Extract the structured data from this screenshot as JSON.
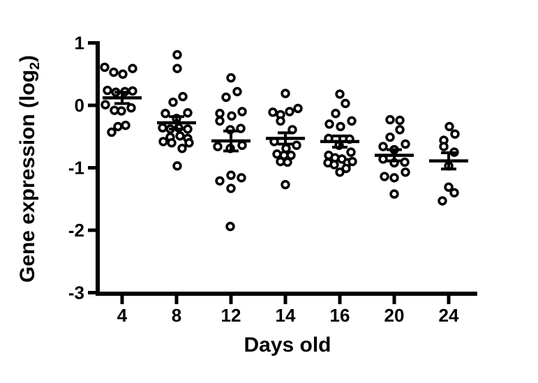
{
  "figure": {
    "background": "#ffffff",
    "ink": "#000000"
  },
  "labels": {
    "xlabel": "Days old",
    "ylabel_main": "Gene expression (log",
    "ylabel_sub": "2",
    "ylabel_suffix": ")"
  },
  "chart_data": {
    "type": "scatter",
    "variant": "column_scatter_with_mean_sem_error_bars",
    "title": "",
    "xlabel": "Days old",
    "ylabel": "Gene expression (log2)",
    "grid": false,
    "legend": false,
    "marker": {
      "shape": "open-circle",
      "color": "#000000",
      "fill": "#ffffff"
    },
    "x_axis": {
      "label": "Days old",
      "categories": [
        "4",
        "8",
        "12",
        "14",
        "16",
        "20",
        "24"
      ]
    },
    "y_axis": {
      "label": "Gene expression (log2)",
      "ticks": [
        "1",
        "0",
        "-1",
        "-2",
        "-3"
      ],
      "tick_values": [
        1,
        0,
        -1,
        -2,
        -3
      ],
      "range": [
        -3,
        1
      ]
    },
    "groups": [
      {
        "day": "4",
        "n": 15,
        "mean": 0.12,
        "sem": 0.09,
        "points": [
          [
            -25,
            0.61
          ],
          [
            -12,
            0.53
          ],
          [
            1,
            0.5
          ],
          [
            15,
            0.59
          ],
          [
            -21,
            0.24
          ],
          [
            -9,
            0.21
          ],
          [
            4,
            0.22
          ],
          [
            15,
            0.23
          ],
          [
            -24,
            0.01
          ],
          [
            -11,
            -0.08
          ],
          [
            -1,
            -0.09
          ],
          [
            13,
            -0.04
          ],
          [
            -6,
            -0.34
          ],
          [
            5,
            -0.32
          ],
          [
            -15,
            -0.43
          ]
        ]
      },
      {
        "day": "8",
        "n": 19,
        "mean": -0.28,
        "sem": 0.1,
        "points": [
          [
            1,
            0.81
          ],
          [
            1,
            0.59
          ],
          [
            -5,
            0.05
          ],
          [
            9,
            0.14
          ],
          [
            -16,
            -0.13
          ],
          [
            16,
            -0.12
          ],
          [
            0,
            -0.21
          ],
          [
            -20,
            -0.36
          ],
          [
            -9,
            -0.38
          ],
          [
            3,
            -0.36
          ],
          [
            16,
            -0.38
          ],
          [
            -9,
            -0.51
          ],
          [
            5,
            -0.49
          ],
          [
            16,
            -0.53
          ],
          [
            -19,
            -0.58
          ],
          [
            -7,
            -0.6
          ],
          [
            18,
            -0.6
          ],
          [
            8,
            -0.69
          ],
          [
            1,
            -0.97
          ]
        ]
      },
      {
        "day": "12",
        "n": 17,
        "mean": -0.57,
        "sem": 0.16,
        "points": [
          [
            0,
            0.44
          ],
          [
            9,
            0.22
          ],
          [
            -7,
            0.13
          ],
          [
            -16,
            -0.13
          ],
          [
            1,
            -0.17
          ],
          [
            16,
            -0.1
          ],
          [
            -16,
            -0.25
          ],
          [
            -1,
            -0.39
          ],
          [
            14,
            -0.37
          ],
          [
            -19,
            -0.66
          ],
          [
            -1,
            -0.69
          ],
          [
            16,
            -0.64
          ],
          [
            0,
            -1.12
          ],
          [
            15,
            -1.16
          ],
          [
            -16,
            -1.21
          ],
          [
            0,
            -1.33
          ],
          [
            -1,
            -1.94
          ]
        ]
      },
      {
        "day": "14",
        "n": 16,
        "mean": -0.53,
        "sem": 0.09,
        "points": [
          [
            0,
            0.19
          ],
          [
            -18,
            -0.11
          ],
          [
            -7,
            -0.15
          ],
          [
            6,
            -0.1
          ],
          [
            18,
            -0.05
          ],
          [
            -7,
            -0.25
          ],
          [
            10,
            -0.39
          ],
          [
            -16,
            -0.58
          ],
          [
            16,
            -0.64
          ],
          [
            1,
            -0.69
          ],
          [
            -12,
            -0.78
          ],
          [
            -2,
            -0.8
          ],
          [
            8,
            -0.8
          ],
          [
            -7,
            -0.9
          ],
          [
            3,
            -0.91
          ],
          [
            0,
            -1.27
          ]
        ]
      },
      {
        "day": "16",
        "n": 19,
        "mean": -0.58,
        "sem": 0.09,
        "points": [
          [
            0,
            0.18
          ],
          [
            8,
            0.03
          ],
          [
            -6,
            -0.13
          ],
          [
            -15,
            -0.3
          ],
          [
            1,
            -0.34
          ],
          [
            17,
            -0.25
          ],
          [
            -16,
            -0.53
          ],
          [
            14,
            -0.54
          ],
          [
            -1,
            -0.64
          ],
          [
            16,
            -0.75
          ],
          [
            -16,
            -0.8
          ],
          [
            -7,
            -0.84
          ],
          [
            3,
            -0.86
          ],
          [
            -17,
            -0.92
          ],
          [
            -8,
            -0.95
          ],
          [
            11,
            -0.92
          ],
          [
            18,
            -0.9
          ],
          [
            0,
            -1.07
          ],
          [
            9,
            -1.01
          ]
        ]
      },
      {
        "day": "20",
        "n": 14,
        "mean": -0.8,
        "sem": 0.09,
        "points": [
          [
            -6,
            -0.23
          ],
          [
            8,
            -0.24
          ],
          [
            8,
            -0.39
          ],
          [
            -6,
            -0.51
          ],
          [
            -16,
            -0.66
          ],
          [
            0,
            -0.71
          ],
          [
            16,
            -0.62
          ],
          [
            -16,
            -0.86
          ],
          [
            0,
            -0.92
          ],
          [
            15,
            -0.91
          ],
          [
            16,
            -1.07
          ],
          [
            -14,
            -1.14
          ],
          [
            0,
            -1.16
          ],
          [
            0,
            -1.42
          ]
        ]
      },
      {
        "day": "24",
        "n": 9,
        "mean": -0.89,
        "sem": 0.13,
        "points": [
          [
            1,
            -0.34
          ],
          [
            9,
            -0.46
          ],
          [
            -7,
            -0.56
          ],
          [
            -7,
            -0.66
          ],
          [
            8,
            -0.75
          ],
          [
            0,
            -0.97
          ],
          [
            0,
            -1.31
          ],
          [
            8,
            -1.4
          ],
          [
            -9,
            -1.53
          ]
        ]
      }
    ]
  }
}
